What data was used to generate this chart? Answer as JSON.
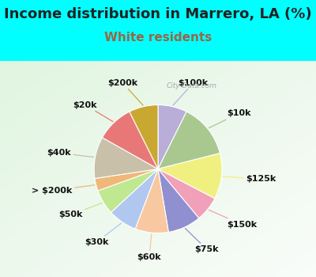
{
  "title": "Income distribution in Marrero, LA (%)",
  "subtitle": "White residents",
  "background_color": "#00ffff",
  "chart_bg": {
    "left": "#d8f0e0",
    "right": "#f0faff"
  },
  "labels": [
    "$100k",
    "$10k",
    "$125k",
    "$150k",
    "$75k",
    "$60k",
    "$30k",
    "$50k",
    "> $200k",
    "$40k",
    "$20k",
    "$200k"
  ],
  "values": [
    7,
    13,
    11,
    6,
    8,
    8,
    7,
    6,
    3,
    10,
    9,
    7
  ],
  "colors": [
    "#b8aed8",
    "#a8c890",
    "#f0f080",
    "#f0a0b8",
    "#9090d0",
    "#f8c8a0",
    "#b0c8f0",
    "#c0e890",
    "#f0b878",
    "#c8c0a8",
    "#e87878",
    "#c8a830"
  ],
  "title_fontsize": 13,
  "subtitle_fontsize": 11,
  "subtitle_color": "#996644",
  "label_fontsize": 8
}
